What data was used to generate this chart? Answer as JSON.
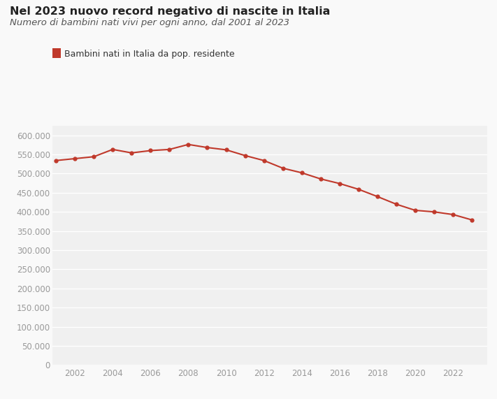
{
  "title": "Nel 2023 nuovo record negativo di nascite in Italia",
  "subtitle": "Numero di bambini nati vivi per ogni anno, dal 2001 al 2023",
  "legend_label": "Bambini nati in Italia da pop. residente",
  "years": [
    2001,
    2002,
    2003,
    2004,
    2005,
    2006,
    2007,
    2008,
    2009,
    2010,
    2011,
    2012,
    2013,
    2014,
    2015,
    2016,
    2017,
    2018,
    2019,
    2020,
    2021,
    2022,
    2023
  ],
  "values": [
    534000,
    539000,
    544000,
    563000,
    554000,
    560000,
    563000,
    576000,
    568000,
    562000,
    547000,
    534000,
    514000,
    502000,
    486000,
    474000,
    459000,
    440000,
    420000,
    404000,
    400000,
    393000,
    379000
  ],
  "line_color": "#c0392b",
  "marker_color": "#c0392b",
  "background_color": "#f9f9f9",
  "plot_background": "#f0f0f0",
  "grid_color": "#ffffff",
  "ylim": [
    0,
    625000
  ],
  "ytick_step": 50000,
  "title_fontsize": 11.5,
  "subtitle_fontsize": 9.5,
  "legend_fontsize": 9,
  "tick_fontsize": 8.5,
  "tick_color": "#999999"
}
